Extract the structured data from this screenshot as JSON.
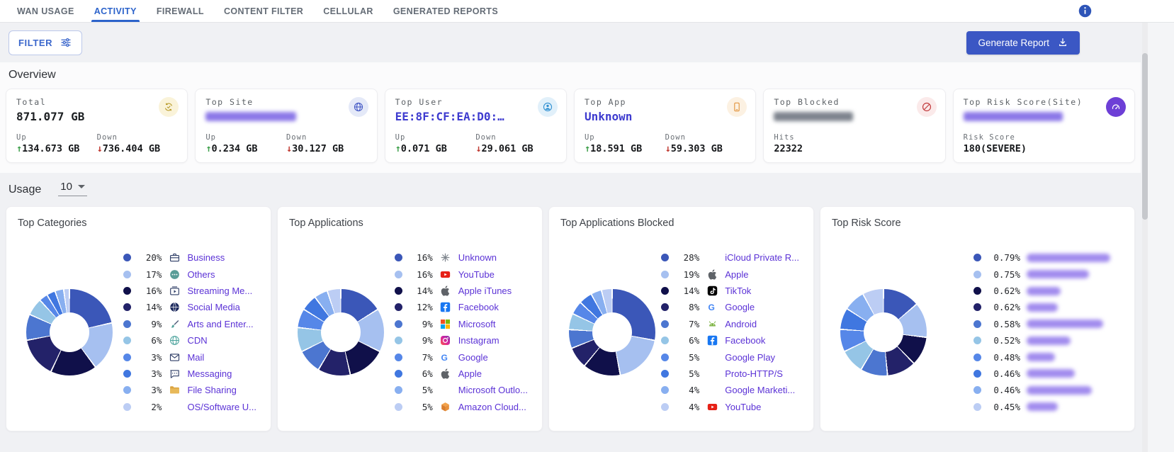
{
  "nav": {
    "tabs": [
      {
        "label": "WAN USAGE",
        "active": false
      },
      {
        "label": "ACTIVITY",
        "active": true
      },
      {
        "label": "FIREWALL",
        "active": false
      },
      {
        "label": "CONTENT FILTER",
        "active": false
      },
      {
        "label": "CELLULAR",
        "active": false
      },
      {
        "label": "GENERATED REPORTS",
        "active": false
      }
    ],
    "info_icon": "info-icon"
  },
  "toolbar": {
    "filter_label": "FILTER",
    "filter_icon": "tune-icon",
    "generate_report_label": "Generate Report",
    "generate_report_icon": "download-icon"
  },
  "overview": {
    "heading": "Overview",
    "cards": [
      {
        "label": "Total",
        "value": "871.077 GB",
        "value_style": "dark",
        "redacted": false,
        "icon": "sync-check-icon",
        "icon_fg": "#b89b2a",
        "icon_bg": "#faf3d9",
        "stats": [
          {
            "label": "Up",
            "dir": "up",
            "value": "134.673 GB"
          },
          {
            "label": "Down",
            "dir": "down",
            "value": "736.404 GB"
          }
        ]
      },
      {
        "label": "Top Site",
        "redacted": true,
        "redact_color": "#8b77e8",
        "icon": "globe-icon",
        "icon_fg": "#4156c4",
        "icon_bg": "#e4e9f8",
        "stats": [
          {
            "label": "Up",
            "dir": "up",
            "value": "0.234 GB"
          },
          {
            "label": "Down",
            "dir": "down",
            "value": "30.127 GB"
          }
        ]
      },
      {
        "label": "Top User",
        "value": "EE:8F:CF:EA:D0:…",
        "value_style": "link",
        "redacted": false,
        "icon": "person-icon",
        "icon_fg": "#2d8fd1",
        "icon_bg": "#e1f0fa",
        "stats": [
          {
            "label": "Up",
            "dir": "up",
            "value": "0.071 GB"
          },
          {
            "label": "Down",
            "dir": "down",
            "value": "29.061 GB"
          }
        ]
      },
      {
        "label": "Top App",
        "value": "Unknown",
        "value_style": "link",
        "redacted": false,
        "icon": "phone-icon",
        "icon_fg": "#e2953f",
        "icon_bg": "#fcf1e2",
        "stats": [
          {
            "label": "Up",
            "dir": "up",
            "value": "18.591 GB"
          },
          {
            "label": "Down",
            "dir": "down",
            "value": "59.303 GB"
          }
        ]
      },
      {
        "label": "Top Blocked",
        "redacted": true,
        "redact_color": "#7d838d",
        "icon": "block-icon",
        "icon_fg": "#c23b3d",
        "icon_bg": "#fbeaea",
        "stats": [
          {
            "label": "Hits",
            "value": "22322"
          }
        ]
      },
      {
        "label": "Top Risk Score(Site)",
        "redacted": true,
        "redact_color": "#8b77e8",
        "icon": "gauge-icon",
        "icon_fg": "#ffffff",
        "icon_bg": "#6d3fd6",
        "stats": [
          {
            "label": "Risk Score",
            "value": "180(SEVERE)"
          }
        ]
      }
    ]
  },
  "usage": {
    "heading": "Usage",
    "page_size": "10"
  },
  "palette": [
    "#3b57b8",
    "#a6c0f0",
    "#10104a",
    "#232269",
    "#4c76d0",
    "#95c5e6",
    "#5687e8",
    "#4077e0",
    "#88aff0",
    "#bccdf4"
  ],
  "charts": [
    {
      "title": "Top Categories",
      "type": "donut",
      "items": [
        {
          "pct": "20%",
          "value": 20,
          "icon": "briefcase-icon",
          "label": "Business"
        },
        {
          "pct": "17%",
          "value": 17,
          "icon": "ellipsis-circle-icon",
          "label": "Others"
        },
        {
          "pct": "16%",
          "value": 16,
          "icon": "streaming-icon",
          "label": "Streaming Me..."
        },
        {
          "pct": "14%",
          "value": 14,
          "icon": "social-globe-icon",
          "label": "Social Media"
        },
        {
          "pct": "9%",
          "value": 9,
          "icon": "arts-icon",
          "label": "Arts and Enter..."
        },
        {
          "pct": "6%",
          "value": 6,
          "icon": "cdn-icon",
          "label": "CDN"
        },
        {
          "pct": "3%",
          "value": 3,
          "icon": "mail-icon",
          "label": "Mail"
        },
        {
          "pct": "3%",
          "value": 3,
          "icon": "chat-icon",
          "label": "Messaging"
        },
        {
          "pct": "3%",
          "value": 3,
          "icon": "folder-icon",
          "label": "File Sharing"
        },
        {
          "pct": "2%",
          "value": 2,
          "icon": null,
          "label": "OS/Software U..."
        }
      ]
    },
    {
      "title": "Top Applications",
      "type": "donut",
      "items": [
        {
          "pct": "16%",
          "value": 16,
          "icon": "unknown-icon",
          "label": "Unknown"
        },
        {
          "pct": "16%",
          "value": 16,
          "icon": "youtube-icon",
          "label": "YouTube"
        },
        {
          "pct": "14%",
          "value": 14,
          "icon": "apple-icon",
          "label": "Apple iTunes"
        },
        {
          "pct": "12%",
          "value": 12,
          "icon": "facebook-icon",
          "label": "Facebook"
        },
        {
          "pct": "9%",
          "value": 9,
          "icon": "microsoft-icon",
          "label": "Microsoft"
        },
        {
          "pct": "9%",
          "value": 9,
          "icon": "instagram-icon",
          "label": "Instagram"
        },
        {
          "pct": "7%",
          "value": 7,
          "icon": "google-icon",
          "label": "Google"
        },
        {
          "pct": "6%",
          "value": 6,
          "icon": "apple-icon",
          "label": "Apple"
        },
        {
          "pct": "5%",
          "value": 5,
          "icon": null,
          "label": "Microsoft Outlo..."
        },
        {
          "pct": "5%",
          "value": 5,
          "icon": "aws-icon",
          "label": "Amazon Cloud..."
        }
      ]
    },
    {
      "title": "Top Applications Blocked",
      "type": "donut",
      "items": [
        {
          "pct": "28%",
          "value": 28,
          "icon": null,
          "label": "iCloud Private R..."
        },
        {
          "pct": "19%",
          "value": 19,
          "icon": "apple-icon",
          "label": "Apple"
        },
        {
          "pct": "14%",
          "value": 14,
          "icon": "tiktok-icon",
          "label": "TikTok"
        },
        {
          "pct": "8%",
          "value": 8,
          "icon": "google-icon",
          "label": "Google"
        },
        {
          "pct": "7%",
          "value": 7,
          "icon": "android-icon",
          "label": "Android"
        },
        {
          "pct": "6%",
          "value": 6,
          "icon": "facebook-icon",
          "label": "Facebook"
        },
        {
          "pct": "5%",
          "value": 5,
          "icon": null,
          "label": "Google Play"
        },
        {
          "pct": "5%",
          "value": 5,
          "icon": null,
          "label": "Proto-HTTP/S"
        },
        {
          "pct": "4%",
          "value": 4,
          "icon": null,
          "label": "Google Marketi..."
        },
        {
          "pct": "4%",
          "value": 4,
          "icon": "youtube-icon",
          "label": "YouTube"
        }
      ]
    },
    {
      "title": "Top Risk Score",
      "type": "donut",
      "items": [
        {
          "pct": "0.79%",
          "value": 0.79,
          "icon": null,
          "redacted": true
        },
        {
          "pct": "0.75%",
          "value": 0.75,
          "icon": null,
          "redacted": true
        },
        {
          "pct": "0.62%",
          "value": 0.62,
          "icon": null,
          "redacted": true
        },
        {
          "pct": "0.62%",
          "value": 0.62,
          "icon": null,
          "redacted": true
        },
        {
          "pct": "0.58%",
          "value": 0.58,
          "icon": null,
          "redacted": true
        },
        {
          "pct": "0.52%",
          "value": 0.52,
          "icon": null,
          "redacted": true
        },
        {
          "pct": "0.48%",
          "value": 0.48,
          "icon": null,
          "redacted": true
        },
        {
          "pct": "0.46%",
          "value": 0.46,
          "icon": null,
          "redacted": true
        },
        {
          "pct": "0.46%",
          "value": 0.46,
          "icon": null,
          "redacted": true
        },
        {
          "pct": "0.45%",
          "value": 0.45,
          "icon": null,
          "redacted": true
        }
      ]
    }
  ]
}
